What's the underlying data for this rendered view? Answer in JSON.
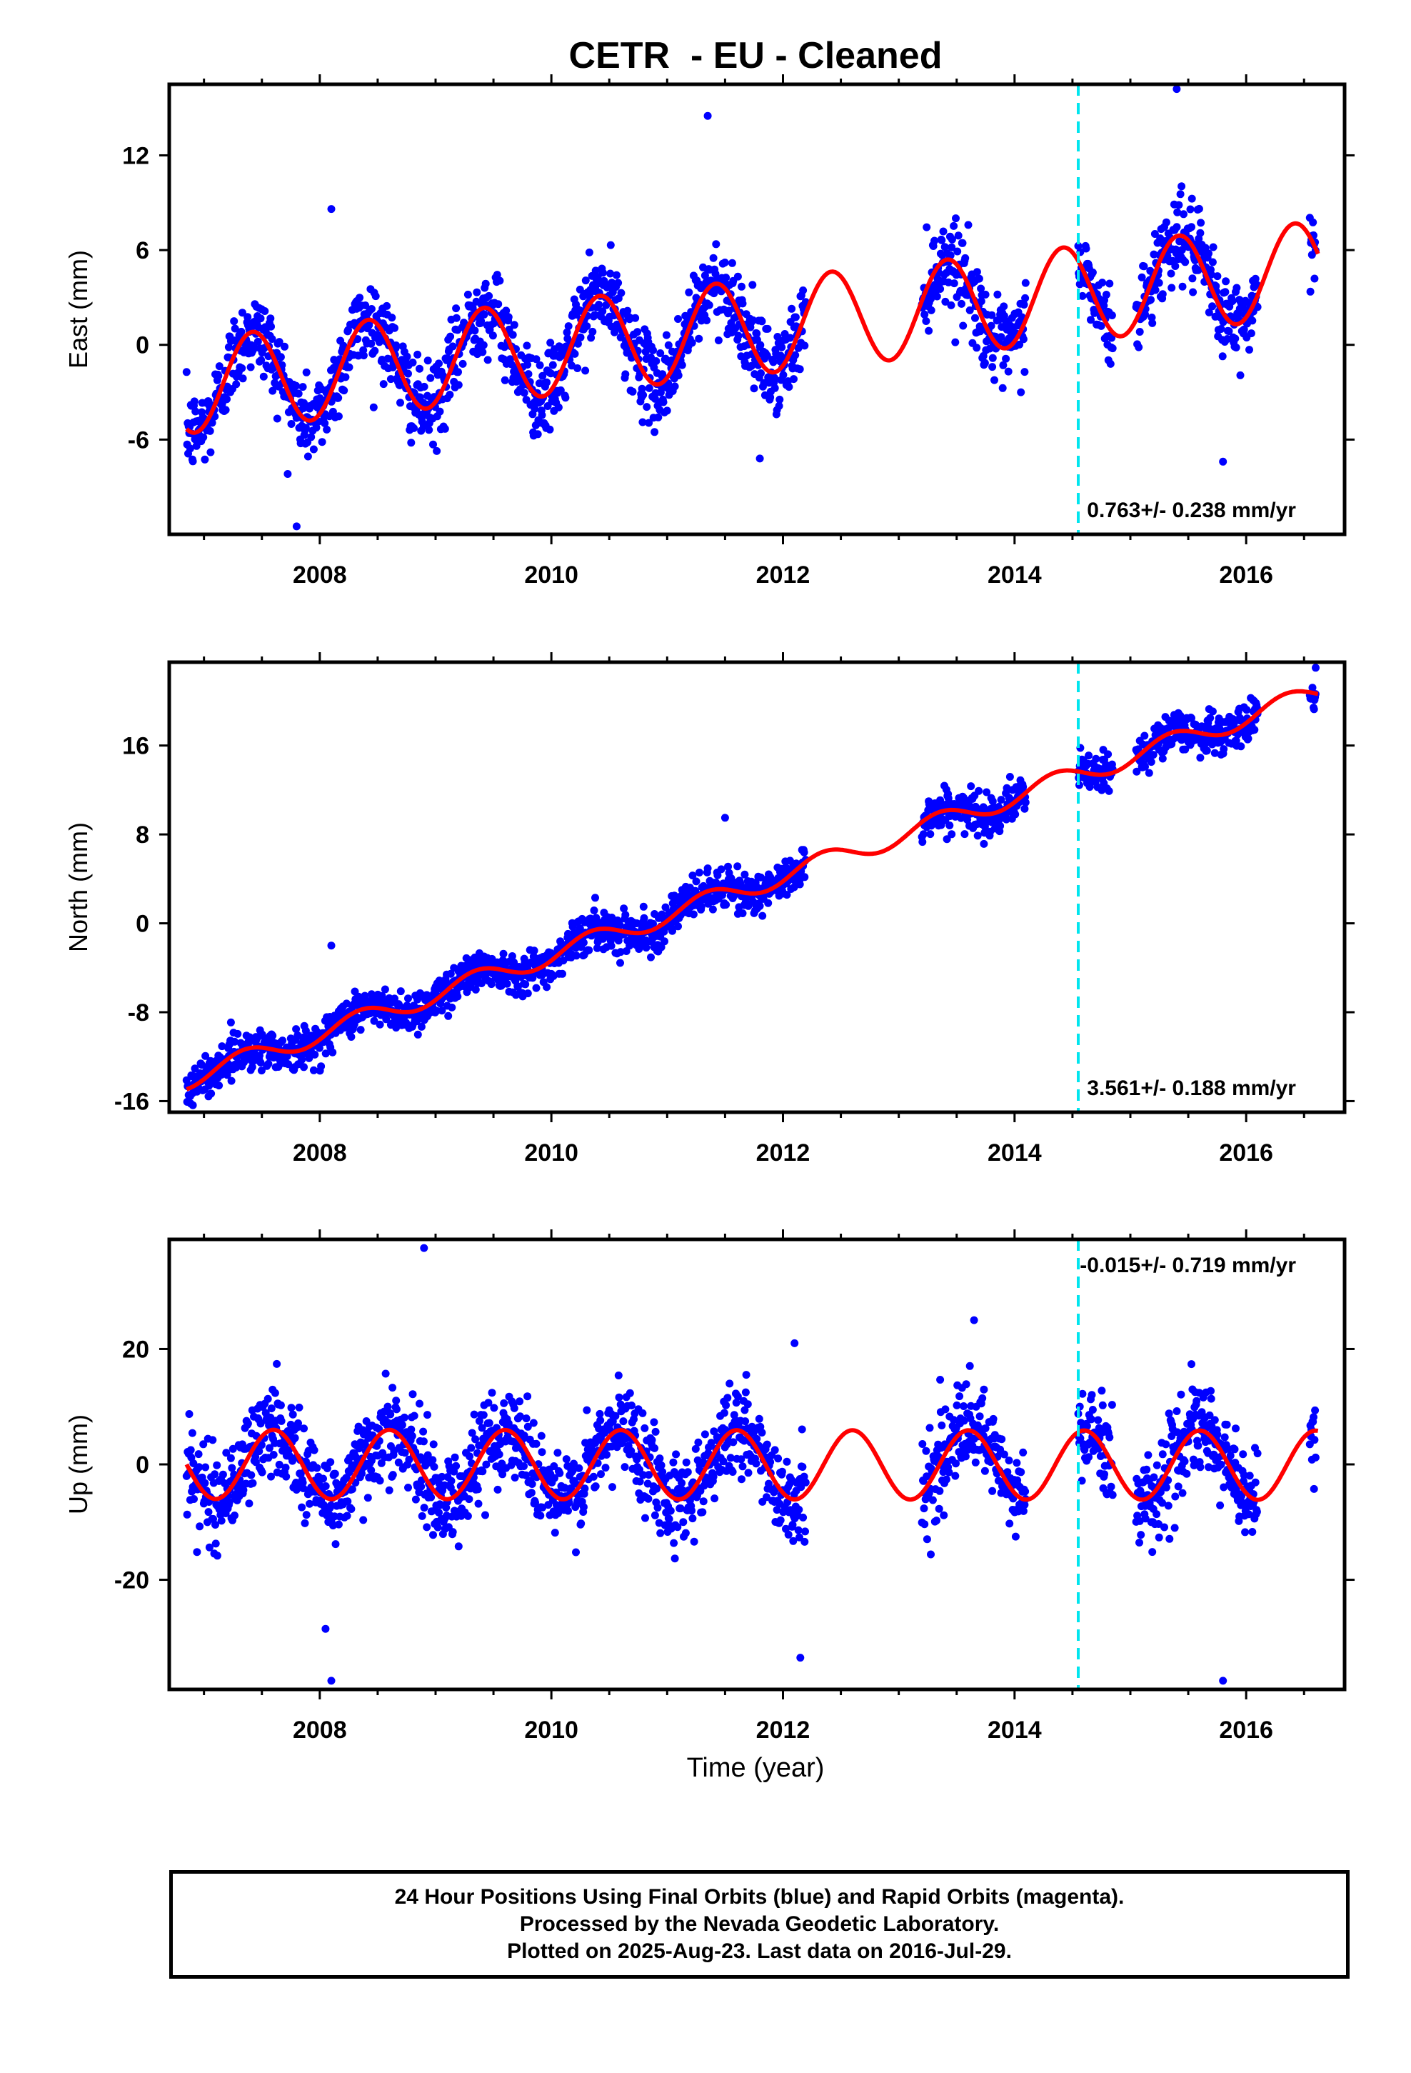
{
  "title": "CETR  - EU - Cleaned",
  "colors": {
    "final_points": "#0000ff",
    "rapid_points": "#ff00ff",
    "model_fit": "#ff0000",
    "break_line": "#00e5ee",
    "axes": "#000000"
  },
  "x_axis": {
    "label": "Time (year)",
    "range": [
      2006.7,
      2016.85
    ],
    "ticks": [
      "2008",
      "2010",
      "2012",
      "2014",
      "2016"
    ],
    "minor_step": 0.5
  },
  "chart_data": [
    {
      "type": "scatter",
      "component": "East",
      "ylabel": "East (mm)",
      "ylim": [
        -12,
        16.5
      ],
      "yticks": [
        "-6",
        "0",
        "6",
        "12"
      ],
      "rate_text": "0.763+/- 0.238 mm/yr",
      "rate_position": "bottom-right",
      "break_epoch": 2014.55,
      "trend_mm_per_yr": 0.763,
      "fit": {
        "offset_at_2007": -2.5,
        "annual_amplitude": 3.0,
        "annual_peak_year_fraction": 0.42
      },
      "data_spans": [
        [
          2006.85,
          2012.2
        ],
        [
          2013.2,
          2014.1
        ],
        [
          2014.55,
          2014.85
        ],
        [
          2015.05,
          2016.1
        ],
        [
          2016.55,
          2016.6
        ]
      ],
      "scatter_sd_mm": 1.3,
      "outliers": [
        {
          "x": 2011.35,
          "y": 14.5
        },
        {
          "x": 2015.4,
          "y": 16.2
        },
        {
          "x": 2008.1,
          "y": 8.6
        },
        {
          "x": 2007.8,
          "y": -11.5
        },
        {
          "x": 2011.8,
          "y": -7.2
        },
        {
          "x": 2015.8,
          "y": -7.4
        }
      ]
    },
    {
      "type": "scatter",
      "component": "North",
      "ylabel": "North (mm)",
      "ylim": [
        -17,
        23.5
      ],
      "yticks": [
        "-16",
        "-8",
        "0",
        "8",
        "16"
      ],
      "rate_text": "3.561+/- 0.188 mm/yr",
      "rate_position": "bottom-right",
      "break_epoch": 2014.55,
      "trend_mm_per_yr": 3.561,
      "fit": {
        "offset_at_2007": -13.5,
        "annual_amplitude": 0.9,
        "annual_peak_year_fraction": 0.35
      },
      "data_spans": [
        [
          2006.85,
          2012.2
        ],
        [
          2013.2,
          2014.1
        ],
        [
          2014.55,
          2014.85
        ],
        [
          2015.05,
          2016.1
        ],
        [
          2016.55,
          2016.6
        ]
      ],
      "scatter_sd_mm": 0.9,
      "outliers": [
        {
          "x": 2011.5,
          "y": 9.5
        },
        {
          "x": 2016.6,
          "y": 23
        },
        {
          "x": 2008.1,
          "y": -2
        }
      ]
    },
    {
      "type": "scatter",
      "component": "Up",
      "ylabel": "Up (mm)",
      "ylim": [
        -39,
        39
      ],
      "yticks": [
        "-20",
        "0",
        "20"
      ],
      "rate_text": "-0.015+/- 0.719 mm/yr",
      "rate_position": "top-right",
      "break_epoch": 2014.55,
      "trend_mm_per_yr": -0.015,
      "fit": {
        "offset_at_2007": 0,
        "annual_amplitude": 6.0,
        "annual_peak_year_fraction": 0.6
      },
      "data_spans": [
        [
          2006.85,
          2012.2
        ],
        [
          2013.2,
          2014.1
        ],
        [
          2014.55,
          2014.85
        ],
        [
          2015.05,
          2016.1
        ],
        [
          2016.55,
          2016.6
        ]
      ],
      "scatter_sd_mm": 4.0,
      "outliers": [
        {
          "x": 2008.9,
          "y": 37.5
        },
        {
          "x": 2008.05,
          "y": -28.5
        },
        {
          "x": 2008.1,
          "y": -37.5
        },
        {
          "x": 2012.15,
          "y": -33.5
        },
        {
          "x": 2015.8,
          "y": -37.5
        },
        {
          "x": 2013.65,
          "y": 25
        },
        {
          "x": 2012.1,
          "y": 21
        }
      ]
    }
  ],
  "caption": {
    "line1": "24 Hour Positions Using Final Orbits (blue) and Rapid Orbits (magenta).",
    "line2": "Processed by the Nevada Geodetic Laboratory.",
    "line3": "Plotted on 2025-Aug-23. Last data on 2016-Jul-29."
  }
}
